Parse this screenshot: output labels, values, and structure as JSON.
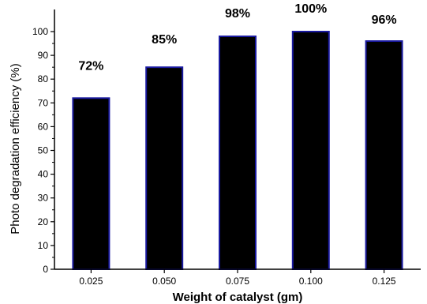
{
  "chart_data": {
    "type": "bar",
    "categories": [
      "0.025",
      "0.050",
      "0.075",
      "0.100",
      "0.125"
    ],
    "values": [
      72,
      85,
      98,
      100,
      96
    ],
    "data_labels": [
      "72%",
      "85%",
      "98%",
      "100%",
      "96%"
    ],
    "title": "",
    "xlabel": "Weight of catalyst (gm)",
    "ylabel": "Photo degradation efficiency (%)",
    "ylim": [
      0,
      100
    ],
    "y_ticks": [
      0,
      10,
      20,
      30,
      40,
      50,
      60,
      70,
      80,
      90,
      100
    ],
    "grid": false,
    "legend": "none",
    "colors": {
      "bar_fill": "#000000",
      "bar_edge": "#1a1aa0",
      "axis": "#000000"
    }
  }
}
